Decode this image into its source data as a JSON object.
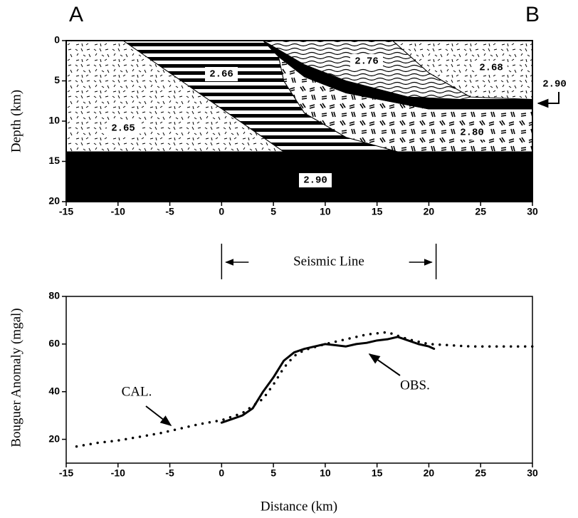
{
  "chart_data": [
    {
      "type": "section",
      "labels": [
        "A",
        "B"
      ],
      "ylabel": "Depth (km)",
      "xlim": [
        -15,
        30
      ],
      "ylim": [
        20,
        0
      ],
      "xticks": [
        -15,
        -10,
        -5,
        0,
        5,
        10,
        15,
        20,
        25,
        30
      ],
      "yticks": [
        0,
        5,
        10,
        15,
        20
      ],
      "regions": [
        {
          "label": "2.90",
          "x": [
            -15,
            30,
            30,
            -15
          ],
          "y": [
            13.8,
            13.8,
            20,
            20
          ]
        },
        {
          "label": "2.65",
          "x": [
            -15,
            -9.5,
            6,
            -15
          ],
          "y": [
            0,
            0,
            13.8,
            13.8
          ]
        },
        {
          "label": "2.66",
          "x": [
            -9.5,
            4,
            5.5,
            6,
            8,
            12,
            17,
            6
          ],
          "y": [
            0,
            0,
            2,
            5,
            9,
            12,
            13.8,
            13.8
          ]
        },
        {
          "label": "2.80",
          "x": [
            5.5,
            8,
            12,
            20,
            30,
            30,
            17,
            12,
            8,
            6
          ],
          "y": [
            2,
            4.5,
            6.5,
            8.5,
            8.5,
            13.8,
            13.8,
            12,
            9,
            5
          ]
        },
        {
          "label": "2.90",
          "x": [
            4,
            8,
            12,
            18,
            23,
            30,
            30,
            20,
            12,
            8,
            5.5
          ],
          "y": [
            0,
            3,
            5,
            7,
            7.3,
            7.3,
            8.5,
            8.5,
            6.5,
            4.5,
            2
          ]
        },
        {
          "label": "2.76",
          "x": [
            4,
            16.5,
            20,
            24,
            23,
            18,
            12,
            8
          ],
          "y": [
            0,
            0,
            4,
            7,
            7.3,
            7,
            5,
            3
          ]
        },
        {
          "label": "2.68",
          "x": [
            16.5,
            30,
            30,
            24,
            20
          ],
          "y": [
            0,
            0,
            7.3,
            7,
            4
          ]
        }
      ]
    },
    {
      "type": "line",
      "xlabel": "Distance (km)",
      "ylabel": "Bouguer Anomaly (mgal)",
      "xlim": [
        -15,
        30
      ],
      "ylim": [
        10,
        80
      ],
      "xticks": [
        -15,
        -10,
        -5,
        0,
        5,
        10,
        15,
        20,
        25,
        30
      ],
      "yticks": [
        20,
        40,
        60,
        80
      ],
      "seismic_line": {
        "label": "Seismic Line",
        "x": [
          0,
          20.7
        ]
      },
      "series": [
        {
          "name": "CAL.",
          "color": "#000000",
          "style": "dotted",
          "x": [
            -14,
            -12,
            -10,
            -8,
            -6,
            -4,
            -2,
            0,
            2,
            4,
            5,
            6,
            7,
            8,
            10,
            12,
            14,
            16,
            18,
            20,
            22,
            24,
            26,
            28,
            30
          ],
          "values": [
            17,
            18.5,
            19.5,
            21,
            22.5,
            24.5,
            26.5,
            28,
            31,
            37,
            43,
            50,
            55,
            57.5,
            60,
            62,
            64,
            65,
            62,
            60,
            59.5,
            59,
            59,
            59,
            59
          ]
        },
        {
          "name": "OBS.",
          "color": "#000000",
          "style": "solid",
          "x": [
            0,
            1,
            2,
            3,
            4,
            5,
            6,
            7,
            8,
            9,
            10,
            11,
            12,
            13,
            14,
            15,
            16,
            17,
            18,
            19,
            20,
            20.5
          ],
          "values": [
            27,
            28.5,
            30,
            33,
            40,
            46,
            53,
            56.5,
            58,
            59,
            60,
            59.5,
            59,
            60,
            60.5,
            61.5,
            62,
            63,
            61.5,
            60,
            59,
            58
          ]
        }
      ]
    }
  ]
}
